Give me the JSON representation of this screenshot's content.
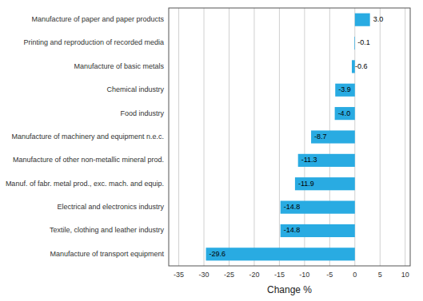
{
  "chart_data": {
    "type": "bar",
    "orientation": "horizontal",
    "x_label": "Change %",
    "categories": [
      "Manufacture of transport equipment",
      "Textile, clothing and leather industry",
      "Electrical and electronics industry",
      "Manuf. of fabr. metal prod., exc. mach. and equip.",
      "Manufacture of other non-metallic mineral prod.",
      "Manufacture of machinery and equipment n.e.c.",
      "Food industry",
      "Chemical industry",
      "Manufacture of basic metals",
      "Printing and reproduction of recorded media",
      "Manufacture of paper and paper products"
    ],
    "values": [
      -29.6,
      -14.8,
      -14.8,
      -11.9,
      -11.3,
      -8.7,
      -4.0,
      -3.9,
      -0.6,
      -0.1,
      3.0
    ],
    "value_labels": [
      "-29.6",
      "-14.8",
      "-14.8",
      "-11.9",
      "-11.3",
      "-8.7",
      "-4.0",
      "-3.9",
      "-0.6",
      "-0.1",
      "3.0"
    ],
    "data_labels": true,
    "color": "#29abe2",
    "xlim": [
      -37,
      11
    ],
    "xticks": [
      -35,
      -30,
      -25,
      -20,
      -15,
      -10,
      -5,
      0,
      5,
      10
    ],
    "grid": true
  }
}
